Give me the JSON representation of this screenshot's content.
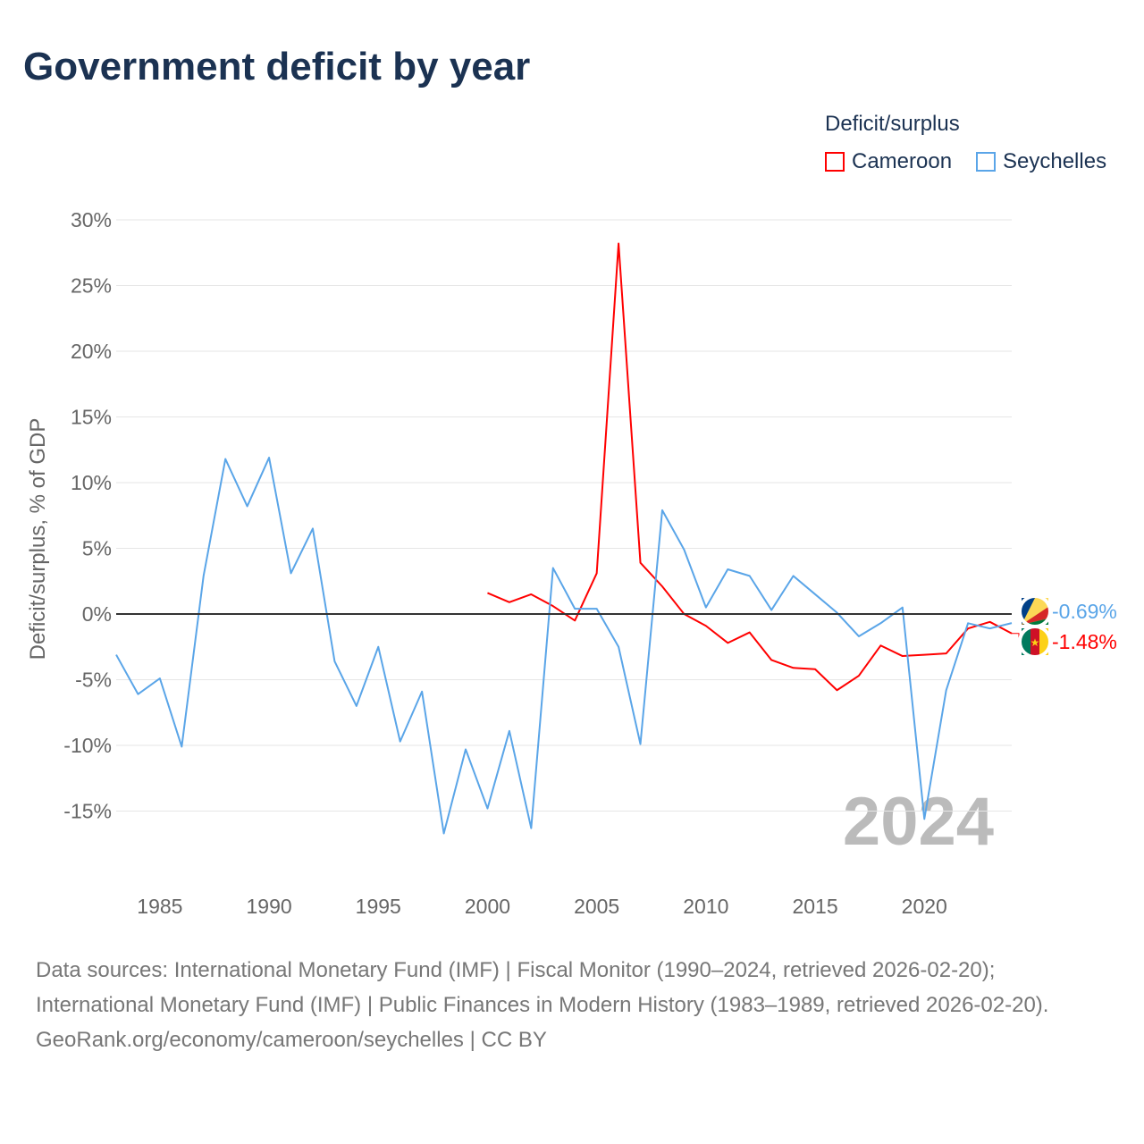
{
  "title": "Government deficit by year",
  "chart_data": {
    "type": "line",
    "title": "Government deficit by year",
    "ylabel": "Deficit/surplus, % of GDP",
    "xlabel": "",
    "ylim": [
      -20,
      30
    ],
    "xlim": [
      1983,
      2024
    ],
    "yticks": [
      30,
      25,
      20,
      15,
      10,
      5,
      0,
      -5,
      -10,
      -15
    ],
    "ytick_labels": [
      "30%",
      "25%",
      "20%",
      "15%",
      "10%",
      "5%",
      "0%",
      "-5%",
      "-10%",
      "-15%"
    ],
    "xticks": [
      1985,
      1990,
      1995,
      2000,
      2005,
      2010,
      2015,
      2020
    ],
    "xtick_labels": [
      "1985",
      "1990",
      "1995",
      "2000",
      "2005",
      "2010",
      "2015",
      "2020"
    ],
    "grid": true,
    "legend_title": "Deficit/surplus",
    "legend_position": "top-right",
    "year_watermark": "2024",
    "series": [
      {
        "name": "Cameroon",
        "color": "#ff0000",
        "end_label": "-1.48%",
        "x": [
          2000,
          2001,
          2002,
          2003,
          2004,
          2005,
          2006,
          2007,
          2008,
          2009,
          2010,
          2011,
          2012,
          2013,
          2014,
          2015,
          2016,
          2017,
          2018,
          2019,
          2020,
          2021,
          2022,
          2023,
          2024
        ],
        "values": [
          1.6,
          0.9,
          1.5,
          0.6,
          -0.5,
          3.1,
          28.2,
          3.9,
          2.1,
          0.0,
          -0.9,
          -2.2,
          -1.4,
          -3.5,
          -4.1,
          -4.2,
          -5.8,
          -4.7,
          -2.4,
          -3.2,
          -3.1,
          -3.0,
          -1.1,
          -0.6,
          -1.48
        ]
      },
      {
        "name": "Seychelles",
        "color": "#5aa5e8",
        "end_label": "-0.69%",
        "x": [
          1983,
          1984,
          1985,
          1986,
          1987,
          1988,
          1989,
          1990,
          1991,
          1992,
          1993,
          1994,
          1995,
          1996,
          1997,
          1998,
          1999,
          2000,
          2001,
          2002,
          2003,
          2004,
          2005,
          2006,
          2007,
          2008,
          2009,
          2010,
          2011,
          2012,
          2013,
          2014,
          2015,
          2016,
          2017,
          2018,
          2019,
          2020,
          2021,
          2022,
          2023,
          2024
        ],
        "values": [
          -3.1,
          -6.1,
          -4.9,
          -10.1,
          2.9,
          11.8,
          8.2,
          11.9,
          3.1,
          6.5,
          -3.6,
          -7.0,
          -2.5,
          -9.7,
          -5.9,
          -16.7,
          -10.3,
          -14.8,
          -8.9,
          -16.3,
          3.5,
          0.4,
          0.4,
          -2.5,
          -9.9,
          7.9,
          4.9,
          0.5,
          3.4,
          2.9,
          0.3,
          2.9,
          1.5,
          0.1,
          -1.7,
          -0.7,
          0.5,
          -15.6,
          -5.8,
          -0.7,
          -1.1,
          -0.69
        ]
      }
    ]
  },
  "sources": {
    "line1": "Data sources: International Monetary Fund (IMF) | Fiscal Monitor (1990–2024, retrieved 2026-02-20); International Monetary Fund (IMF) | Public Finances in Modern History (1983–1989, retrieved 2026-02-20).",
    "line2": "GeoRank.org/economy/cameroon/seychelles | CC BY"
  }
}
